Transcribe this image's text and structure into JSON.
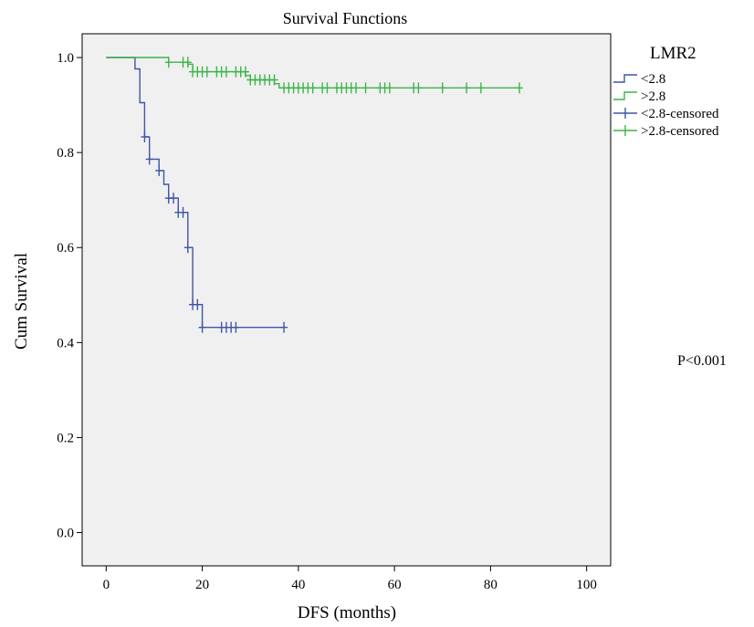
{
  "chart_data": {
    "type": "line",
    "title": "Survival Functions",
    "xlabel": "DFS (months)",
    "ylabel": "Cum Survival",
    "xlim": [
      -5,
      105
    ],
    "ylim": [
      -0.07,
      1.05
    ],
    "xticks": [
      "0",
      "20",
      "40",
      "60",
      "80",
      "100"
    ],
    "xtick_values": [
      0,
      20,
      40,
      60,
      80,
      100
    ],
    "yticks": [
      "0.0",
      "0.2",
      "0.4",
      "0.6",
      "0.8",
      "1.0"
    ],
    "ytick_values": [
      0.0,
      0.2,
      0.4,
      0.6,
      0.8,
      1.0
    ],
    "grid": false,
    "legend_title": "LMR2",
    "legend_position": "outside-top-right",
    "annotation": "P<0.001",
    "plot_background": "#f0f0f0",
    "series": [
      {
        "name": "<2.8",
        "color": "#3f55a8",
        "step": [
          [
            0,
            1.0
          ],
          [
            6,
            1.0
          ],
          [
            6,
            0.976
          ],
          [
            7,
            0.976
          ],
          [
            7,
            0.905
          ],
          [
            8,
            0.905
          ],
          [
            8,
            0.833
          ],
          [
            9,
            0.833
          ],
          [
            9,
            0.786
          ],
          [
            11,
            0.786
          ],
          [
            11,
            0.762
          ],
          [
            12,
            0.762
          ],
          [
            12,
            0.733
          ],
          [
            13,
            0.733
          ],
          [
            13,
            0.704
          ],
          [
            15,
            0.704
          ],
          [
            15,
            0.674
          ],
          [
            17,
            0.674
          ],
          [
            17,
            0.6
          ],
          [
            18,
            0.6
          ],
          [
            18,
            0.48
          ],
          [
            20,
            0.48
          ],
          [
            20,
            0.432
          ],
          [
            37,
            0.432
          ]
        ]
      },
      {
        "name": ">2.8",
        "color": "#3cb44b",
        "step": [
          [
            0,
            1.0
          ],
          [
            13,
            1.0
          ],
          [
            13,
            0.99
          ],
          [
            17,
            0.99
          ],
          [
            17,
            0.986
          ],
          [
            18,
            0.986
          ],
          [
            18,
            0.97
          ],
          [
            29,
            0.97
          ],
          [
            29,
            0.962
          ],
          [
            30,
            0.962
          ],
          [
            30,
            0.953
          ],
          [
            35,
            0.953
          ],
          [
            35,
            0.945
          ],
          [
            36,
            0.945
          ],
          [
            36,
            0.936
          ],
          [
            86,
            0.936
          ]
        ]
      },
      {
        "name": "<2.8-censored",
        "color": "#3f55a8",
        "points": [
          [
            8,
            0.833
          ],
          [
            9,
            0.786
          ],
          [
            11,
            0.762
          ],
          [
            13,
            0.704
          ],
          [
            14,
            0.704
          ],
          [
            15,
            0.674
          ],
          [
            16,
            0.674
          ],
          [
            17,
            0.6
          ],
          [
            18,
            0.48
          ],
          [
            19,
            0.48
          ],
          [
            20,
            0.432
          ],
          [
            24,
            0.432
          ],
          [
            25,
            0.432
          ],
          [
            26,
            0.432
          ],
          [
            27,
            0.432
          ],
          [
            37,
            0.432
          ]
        ]
      },
      {
        "name": ">2.8-censored",
        "color": "#3cb44b",
        "points": [
          [
            13,
            0.99
          ],
          [
            16,
            0.99
          ],
          [
            17,
            0.99
          ],
          [
            18,
            0.97
          ],
          [
            19,
            0.97
          ],
          [
            20,
            0.97
          ],
          [
            21,
            0.97
          ],
          [
            23,
            0.97
          ],
          [
            24,
            0.97
          ],
          [
            25,
            0.97
          ],
          [
            27,
            0.97
          ],
          [
            28,
            0.97
          ],
          [
            29,
            0.97
          ],
          [
            30,
            0.953
          ],
          [
            31,
            0.953
          ],
          [
            32,
            0.953
          ],
          [
            33,
            0.953
          ],
          [
            34,
            0.953
          ],
          [
            35,
            0.953
          ],
          [
            37,
            0.936
          ],
          [
            38,
            0.936
          ],
          [
            39,
            0.936
          ],
          [
            40,
            0.936
          ],
          [
            41,
            0.936
          ],
          [
            42,
            0.936
          ],
          [
            43,
            0.936
          ],
          [
            45,
            0.936
          ],
          [
            46,
            0.936
          ],
          [
            48,
            0.936
          ],
          [
            49,
            0.936
          ],
          [
            50,
            0.936
          ],
          [
            51,
            0.936
          ],
          [
            52,
            0.936
          ],
          [
            54,
            0.936
          ],
          [
            57,
            0.936
          ],
          [
            58,
            0.936
          ],
          [
            59,
            0.936
          ],
          [
            64,
            0.936
          ],
          [
            65,
            0.936
          ],
          [
            70,
            0.936
          ],
          [
            75,
            0.936
          ],
          [
            78,
            0.936
          ],
          [
            86,
            0.936
          ]
        ]
      }
    ]
  }
}
